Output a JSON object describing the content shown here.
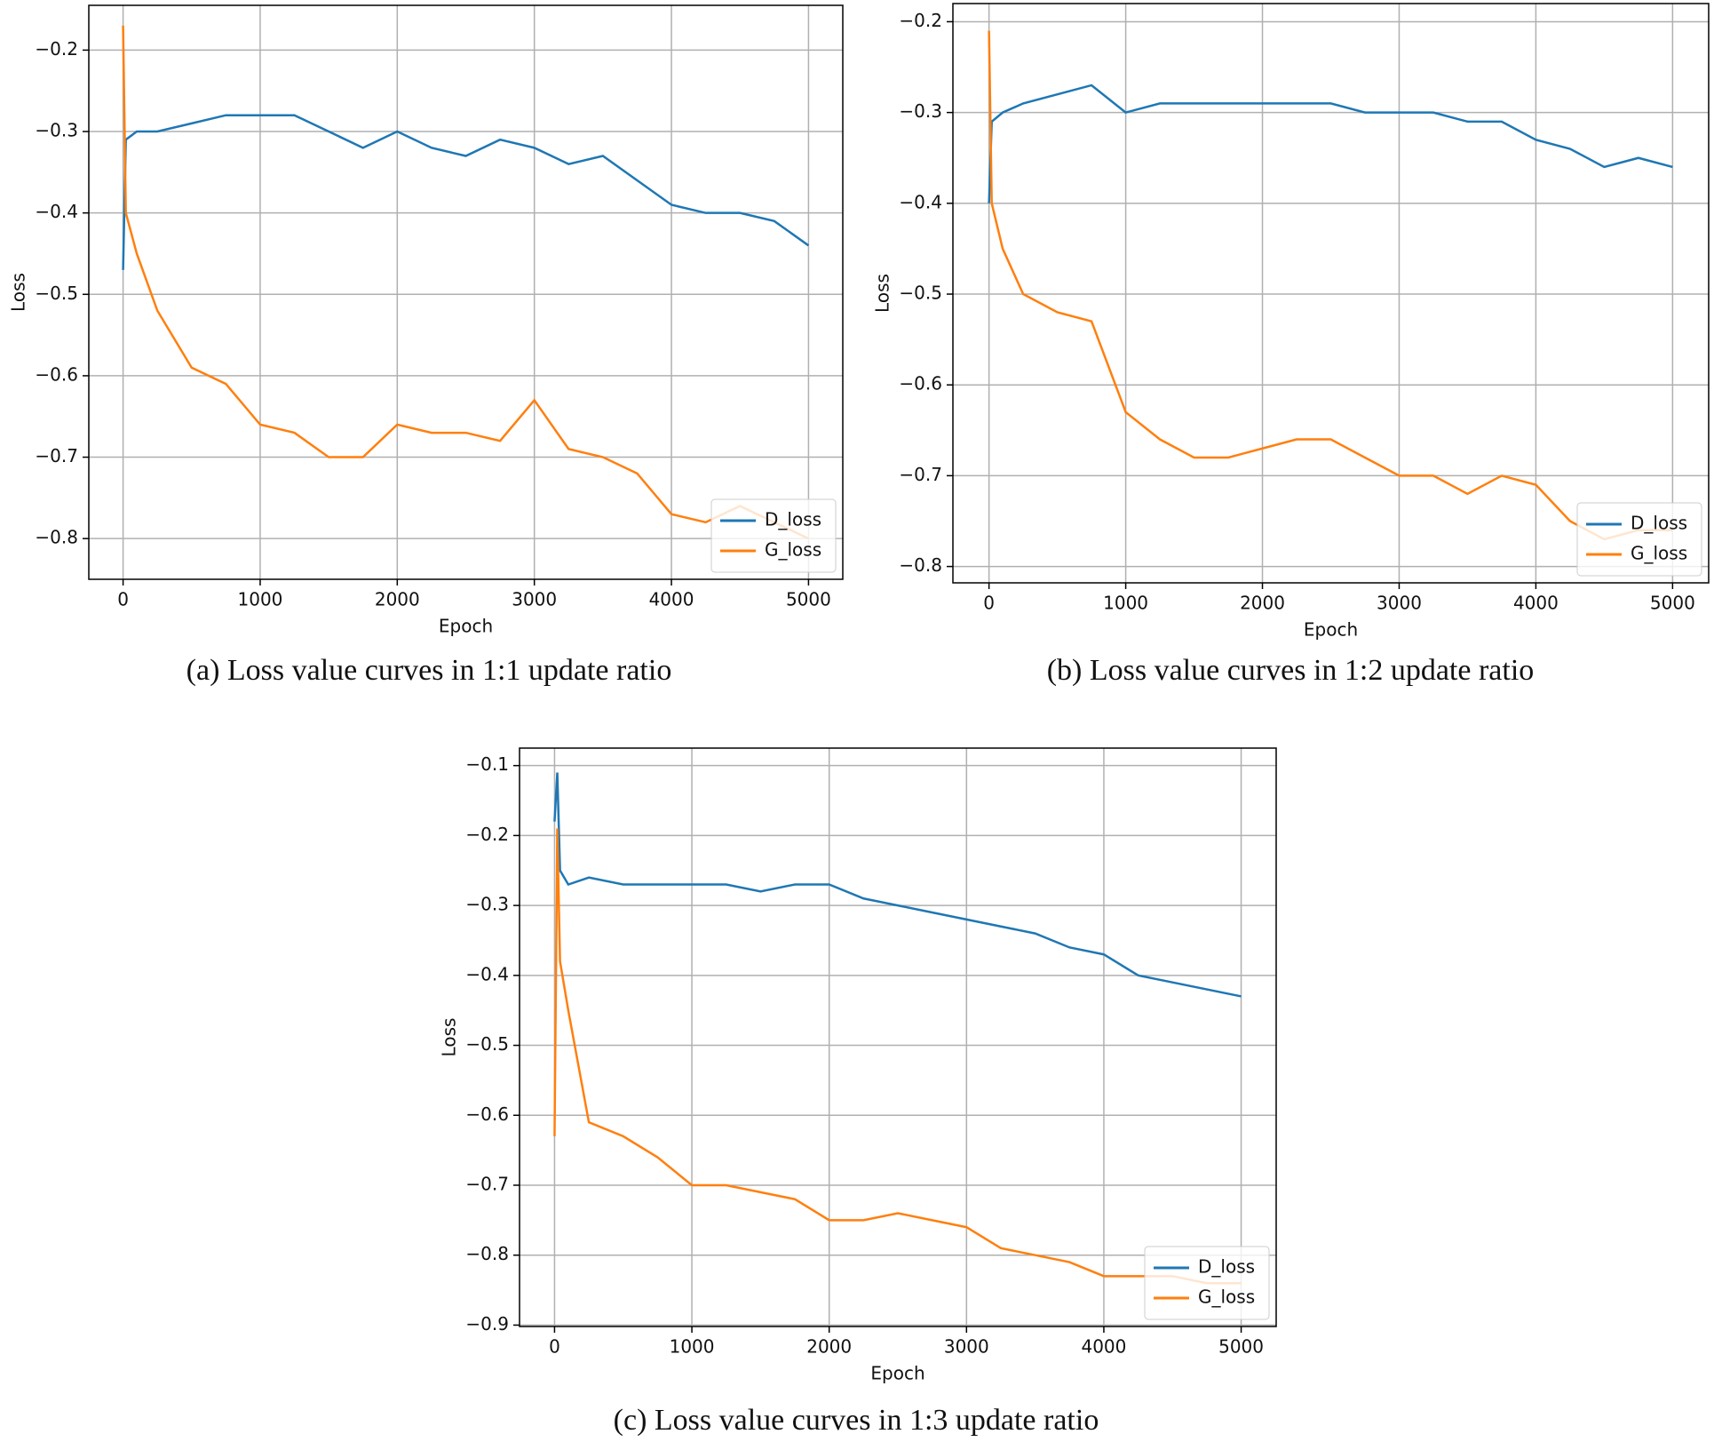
{
  "chart_data": [
    {
      "type": "line",
      "caption": "(a) Loss value curves in 1:1 update ratio",
      "xlabel": "Epoch",
      "ylabel": "Loss",
      "x": [
        0,
        20,
        100,
        250,
        500,
        750,
        1000,
        1250,
        1500,
        1750,
        2000,
        2250,
        2500,
        2750,
        3000,
        3250,
        3500,
        3750,
        4000,
        4250,
        4500,
        4750,
        5000
      ],
      "series": [
        {
          "name": "D_loss",
          "color": "#1f77b4",
          "values": [
            -0.47,
            -0.31,
            -0.3,
            -0.3,
            -0.29,
            -0.28,
            -0.28,
            -0.28,
            -0.3,
            -0.32,
            -0.3,
            -0.32,
            -0.33,
            -0.31,
            -0.32,
            -0.34,
            -0.33,
            -0.36,
            -0.39,
            -0.4,
            -0.4,
            -0.41,
            -0.44
          ]
        },
        {
          "name": "G_loss",
          "color": "#ff7f0e",
          "values": [
            -0.17,
            -0.4,
            -0.45,
            -0.52,
            -0.59,
            -0.61,
            -0.66,
            -0.67,
            -0.7,
            -0.7,
            -0.66,
            -0.67,
            -0.67,
            -0.68,
            -0.63,
            -0.69,
            -0.7,
            -0.72,
            -0.77,
            -0.78,
            -0.76,
            -0.78,
            -0.8
          ]
        }
      ],
      "xlim": [
        -250,
        5250
      ],
      "xticks": [
        0,
        1000,
        2000,
        3000,
        4000,
        5000
      ],
      "ylim": [
        -0.85,
        -0.145
      ],
      "yticks": [
        {
          "value": -0.8,
          "label": "−0.8"
        },
        {
          "value": -0.7,
          "label": "−0.7"
        },
        {
          "value": -0.6,
          "label": "−0.6"
        },
        {
          "value": -0.5,
          "label": "−0.5"
        },
        {
          "value": -0.4,
          "label": "−0.4"
        },
        {
          "value": -0.3,
          "label": "−0.3"
        },
        {
          "value": -0.2,
          "label": "−0.2"
        }
      ],
      "grid": true,
      "legend": "lower right"
    },
    {
      "type": "line",
      "caption": "(b) Loss value curves in 1:2 update ratio",
      "xlabel": "Epoch",
      "ylabel": "Loss",
      "x": [
        0,
        20,
        100,
        250,
        500,
        750,
        1000,
        1250,
        1500,
        1750,
        2000,
        2250,
        2500,
        2750,
        3000,
        3250,
        3500,
        3750,
        4000,
        4250,
        4500,
        4750,
        5000
      ],
      "series": [
        {
          "name": "D_loss",
          "color": "#1f77b4",
          "values": [
            -0.4,
            -0.31,
            -0.3,
            -0.29,
            -0.28,
            -0.27,
            -0.3,
            -0.29,
            -0.29,
            -0.29,
            -0.29,
            -0.29,
            -0.29,
            -0.3,
            -0.3,
            -0.3,
            -0.31,
            -0.31,
            -0.33,
            -0.34,
            -0.36,
            -0.35,
            -0.36
          ]
        },
        {
          "name": "G_loss",
          "color": "#ff7f0e",
          "values": [
            -0.21,
            -0.4,
            -0.45,
            -0.5,
            -0.52,
            -0.53,
            -0.63,
            -0.66,
            -0.68,
            -0.68,
            -0.67,
            -0.66,
            -0.66,
            -0.68,
            -0.7,
            -0.7,
            -0.72,
            -0.7,
            -0.71,
            -0.75,
            -0.77,
            -0.76,
            -0.76
          ]
        }
      ],
      "xlim": [
        -264,
        5264
      ],
      "xticks": [
        0,
        1000,
        2000,
        3000,
        4000,
        5000
      ],
      "ylim": [
        -0.818,
        -0.18
      ],
      "yticks": [
        {
          "value": -0.8,
          "label": "−0.8"
        },
        {
          "value": -0.7,
          "label": "−0.7"
        },
        {
          "value": -0.6,
          "label": "−0.6"
        },
        {
          "value": -0.5,
          "label": "−0.5"
        },
        {
          "value": -0.4,
          "label": "−0.4"
        },
        {
          "value": -0.3,
          "label": "−0.3"
        },
        {
          "value": -0.2,
          "label": "−0.2"
        }
      ],
      "grid": true,
      "legend": "lower right"
    },
    {
      "type": "line",
      "caption": "(c) Loss value curves in 1:3 update ratio",
      "xlabel": "Epoch",
      "ylabel": "Loss",
      "x": [
        0,
        20,
        40,
        100,
        250,
        500,
        750,
        1000,
        1250,
        1500,
        1750,
        2000,
        2250,
        2500,
        2750,
        3000,
        3250,
        3500,
        3750,
        4000,
        4250,
        4500,
        4750,
        5000
      ],
      "series": [
        {
          "name": "D_loss",
          "color": "#1f77b4",
          "values": [
            -0.18,
            -0.11,
            -0.25,
            -0.27,
            -0.26,
            -0.27,
            -0.27,
            -0.27,
            -0.27,
            -0.28,
            -0.27,
            -0.27,
            -0.29,
            -0.3,
            -0.31,
            -0.32,
            -0.33,
            -0.34,
            -0.36,
            -0.37,
            -0.4,
            -0.41,
            -0.42,
            -0.43
          ]
        },
        {
          "name": "G_loss",
          "color": "#ff7f0e",
          "values": [
            -0.63,
            -0.19,
            -0.38,
            -0.45,
            -0.61,
            -0.63,
            -0.66,
            -0.7,
            -0.7,
            -0.71,
            -0.72,
            -0.75,
            -0.75,
            -0.74,
            -0.75,
            -0.76,
            -0.79,
            -0.8,
            -0.81,
            -0.83,
            -0.83,
            -0.83,
            -0.84,
            -0.84
          ]
        }
      ],
      "xlim": [
        -255,
        5255
      ],
      "xticks": [
        0,
        1000,
        2000,
        3000,
        4000,
        5000
      ],
      "ylim": [
        -0.902,
        -0.075
      ],
      "yticks": [
        {
          "value": -0.9,
          "label": "−0.9"
        },
        {
          "value": -0.8,
          "label": "−0.8"
        },
        {
          "value": -0.7,
          "label": "−0.7"
        },
        {
          "value": -0.6,
          "label": "−0.6"
        },
        {
          "value": -0.5,
          "label": "−0.5"
        },
        {
          "value": -0.4,
          "label": "−0.4"
        },
        {
          "value": -0.3,
          "label": "−0.3"
        },
        {
          "value": -0.2,
          "label": "−0.2"
        },
        {
          "value": -0.1,
          "label": "−0.1"
        }
      ],
      "grid": true,
      "legend": "lower right"
    }
  ]
}
